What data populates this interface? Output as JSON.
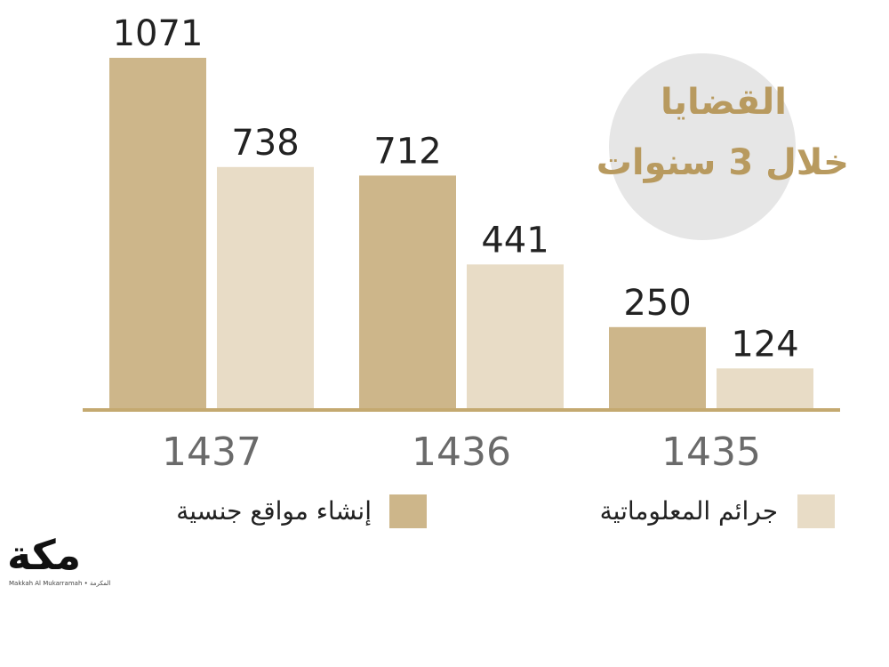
{
  "chart_data": {
    "type": "bar",
    "title": [
      "القضايا",
      "خلال 3 سنوات"
    ],
    "categories": [
      "1437",
      "1436",
      "1435"
    ],
    "series": [
      {
        "name": "إنشاء مواقع جنسية",
        "values": [
          1071,
          712,
          250
        ],
        "color": "#cdb68a"
      },
      {
        "name": "جرائم المعلوماتية",
        "values": [
          738,
          441,
          124
        ],
        "color": "#e8dcc6"
      }
    ],
    "ylim": [
      0,
      1071
    ],
    "grid": false,
    "legend_position": "bottom"
  },
  "colors": {
    "axis": "#c4a970",
    "title": "#b89a5f",
    "circle": "#e6e6e6"
  },
  "logo": {
    "text": "مكة",
    "subtext": "Makkah Al Mukarramah • المكرمة"
  }
}
